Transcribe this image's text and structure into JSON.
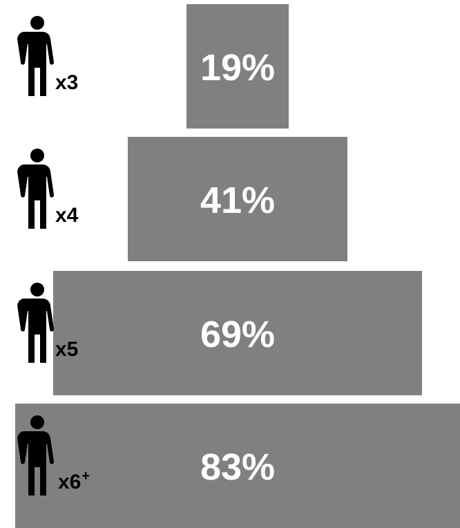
{
  "chart_data": {
    "type": "bar",
    "orientation": "horizontal-centered",
    "categories": [
      "x3",
      "x4",
      "x5",
      "x6+"
    ],
    "category_labels": [
      {
        "base": "x3",
        "sup": ""
      },
      {
        "base": "x4",
        "sup": ""
      },
      {
        "base": "x5",
        "sup": ""
      },
      {
        "base": "x6",
        "sup": "+"
      }
    ],
    "values": [
      19,
      41,
      69,
      83
    ],
    "value_labels": [
      "19%",
      "41%",
      "69%",
      "83%"
    ],
    "unit": "%",
    "category_icon": "person-icon",
    "colors": {
      "bar": "#808080",
      "bar_text": "#ffffff",
      "icon": "#000000"
    }
  }
}
